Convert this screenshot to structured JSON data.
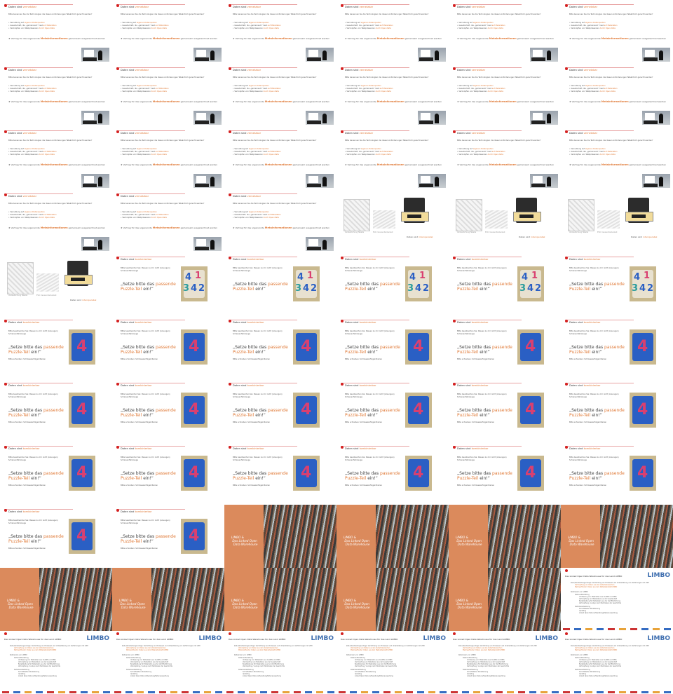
{
  "rows": [
    [
      "A",
      "A",
      "A",
      "A",
      "A",
      "A"
    ],
    [
      "A",
      "A",
      "A",
      "A",
      "A",
      "A"
    ],
    [
      "A",
      "A",
      "A",
      "A",
      "A",
      "A"
    ],
    [
      "A",
      "A",
      "A",
      "B",
      "B",
      "B"
    ],
    [
      "B",
      "C",
      "C",
      "C",
      "C",
      "C"
    ],
    [
      "D",
      "D",
      "D",
      "D",
      "D",
      "D"
    ],
    [
      "D",
      "D",
      "D",
      "D",
      "D",
      "D"
    ],
    [
      "D",
      "D",
      "D",
      "D",
      "D",
      "D"
    ],
    [
      "D",
      "D",
      "L",
      "L",
      "L",
      "L"
    ],
    [
      "L",
      "L",
      "L",
      "L",
      "L",
      "M"
    ],
    [
      "M",
      "M",
      "M",
      "M",
      "M",
      "M"
    ]
  ],
  "slide_a": {
    "title": "Daten sind",
    "title_acc": "vernetzbar",
    "intro": "Bitte benennen Sie die Technologien die diesen Anforderungen Tatsächlich gerecht werden?",
    "b1a": "Vernetzung auf",
    "b1b": "eigenen Datenquellen",
    "b2a": "Gesellschaft, die „gemeinsam“ liest",
    "b2b": "auf Metadaten",
    "b3a": "Verknüpfen von Webpräsenzen",
    "b3b": "durch Open-Data",
    "star_a": "Vertrag für das sogenannte",
    "star_strong": "Metainformationen",
    "star_b": "gemeinsam ausgezeichnet werden"
  },
  "slide_b": {
    "cap1": "Verdeutlichung Tabelle",
    "cap2": "EVR: Verwandterbarkeit",
    "bottom": "Daten sind",
    "bottom_acc": "interoperabel"
  },
  "slide_c": {
    "title": "Daten sind",
    "title_acc": "kombinierbar",
    "intro1": "Bitte beantworten Sie: Passen zu mir nicht (Lösungen)",
    "intro2": "Schienenfahrzeuge",
    "q1": "„Setze bitte das",
    "q1_acc": "passende",
    "q2_acc": "Puzzle-Teil",
    "q2": "ein!“",
    "n1": "4",
    "n2": "1",
    "n3": "3",
    "n4": "4",
    "n5": "2"
  },
  "slide_d": {
    "four": "4",
    "note": "Bitte schreiben: Schlüsselerfolgskriterien"
  },
  "slide_l": {
    "label": "LIMBO &\n Das Linked Open\n  Data Warehouse"
  },
  "slide_m": {
    "title": "Das Linked Open Data Warehouse für das Land LIMBO",
    "logo": "LIMBO",
    "l1": "Zeit-/Verarbeitungsvorlage: Verdichtung von Prozessen und Unterstützung von Verfahrungen mit LHM",
    "l2": "Verknüpfung von Daten aus den Verkehrsbereichen",
    "l3": "Mehrwerttextur: Daten aus dem Metadatenblatt LIMBO",
    "l4": "Referenzen von LIMBO",
    "l5": "Datenaufbereitung",
    "l6": "Umfassung von Metadaten aus CLARIN und DBIS",
    "l7": "Verknüpfung von Metadaten aus der Gesellschaft",
    "l8": "Bereitstellung für Metadaten aus der Veröffentlichung",
    "l9": "Verknüpfung / Lookup nach Merkmalen der Geschichte",
    "l10": "Datenbereitstellung",
    "l11": "Schnittstellen-Modellierung",
    "l12": "Updating",
    "l13": "Linked Open Data Aufbereitung/Datenauswertung"
  }
}
